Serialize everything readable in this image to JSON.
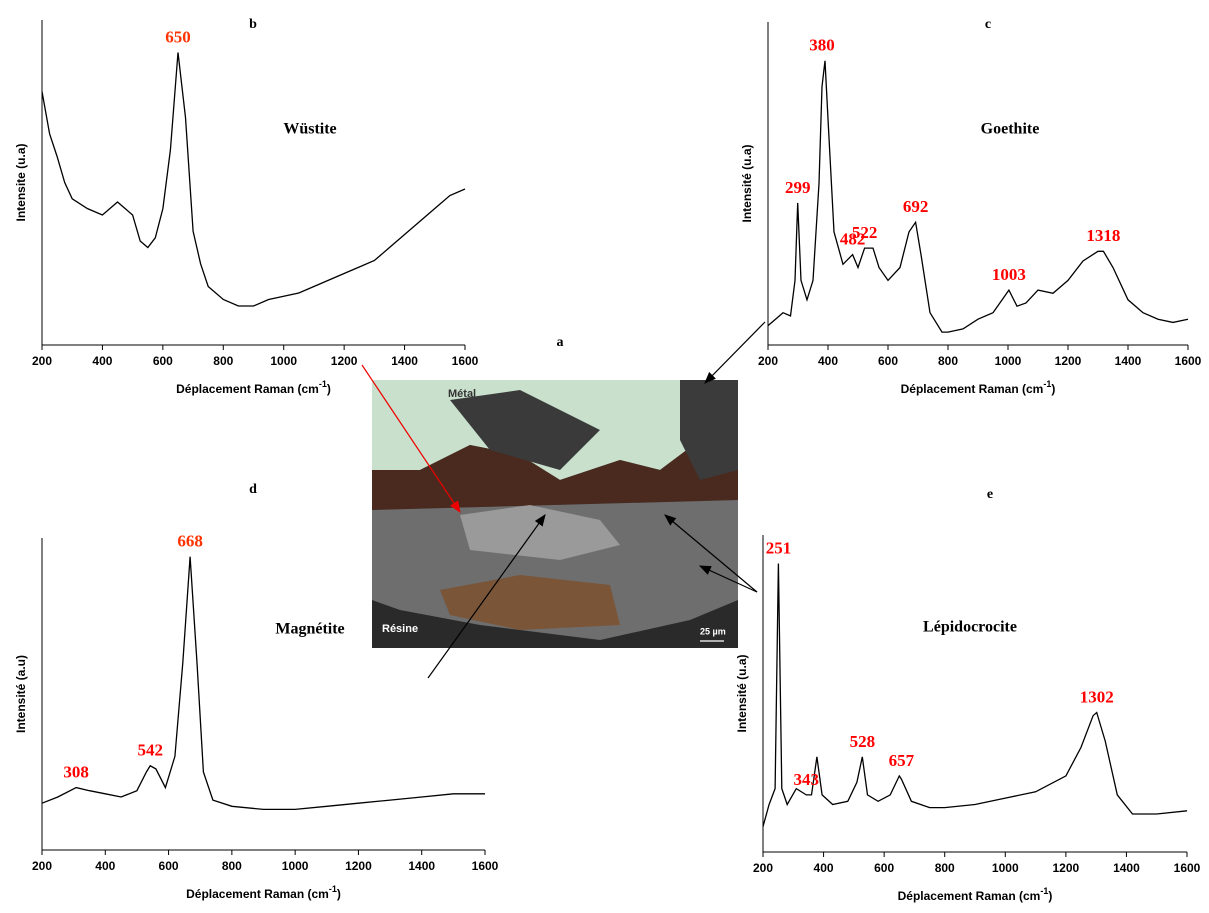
{
  "figure_label": "a",
  "micrograph": {
    "labels": [
      "Métal",
      "Résine",
      "25 µm"
    ]
  },
  "chart_data": [
    {
      "type": "line",
      "title": "b",
      "annotation": "Wüstite",
      "ylabel": "Intensite (u.a)",
      "xlabel": [
        "Déplacement Raman (cm",
        "-1",
        ")"
      ],
      "x": [
        200,
        225,
        250,
        275,
        300,
        350,
        400,
        450,
        500,
        525,
        550,
        575,
        600,
        625,
        650,
        675,
        700,
        725,
        750,
        800,
        850,
        900,
        950,
        1000,
        1050,
        1100,
        1150,
        1200,
        1250,
        1300,
        1350,
        1400,
        1450,
        1500,
        1550,
        1600
      ],
      "values": [
        78,
        65,
        58,
        50,
        45,
        42,
        40,
        44,
        40,
        32,
        30,
        33,
        42,
        60,
        90,
        70,
        35,
        25,
        18,
        14,
        12,
        12,
        14,
        15,
        16,
        18,
        20,
        22,
        24,
        26,
        30,
        34,
        38,
        42,
        46,
        48
      ],
      "color": "#000000",
      "xlim": [
        200,
        1600
      ],
      "ylim": [
        0,
        100
      ],
      "xticks": [
        200,
        400,
        600,
        800,
        1000,
        1200,
        1400,
        1600
      ],
      "peaks": [
        650
      ],
      "peak_colors": [
        "#ff3300"
      ]
    },
    {
      "type": "line",
      "title": "c",
      "annotation": "Goethite",
      "ylabel": "Intensité (u.a)",
      "xlabel": [
        "Déplacement Raman (cm",
        "-1",
        ")"
      ],
      "x": [
        200,
        225,
        250,
        275,
        290,
        299,
        310,
        330,
        350,
        370,
        380,
        390,
        400,
        420,
        450,
        482,
        500,
        522,
        550,
        570,
        600,
        640,
        670,
        692,
        710,
        740,
        780,
        800,
        850,
        900,
        950,
        1003,
        1030,
        1060,
        1100,
        1150,
        1200,
        1250,
        1300,
        1318,
        1350,
        1400,
        1450,
        1500,
        1550,
        1600
      ],
      "values": [
        6,
        8,
        10,
        9,
        20,
        44,
        20,
        14,
        20,
        50,
        80,
        88,
        70,
        35,
        25,
        28,
        24,
        30,
        30,
        24,
        20,
        24,
        35,
        38,
        28,
        10,
        4,
        4,
        5,
        8,
        10,
        17,
        12,
        13,
        17,
        16,
        20,
        26,
        29,
        29,
        24,
        14,
        10,
        8,
        7,
        8
      ],
      "color": "#000000",
      "xlim": [
        200,
        1600
      ],
      "ylim": [
        0,
        100
      ],
      "xticks": [
        200,
        400,
        600,
        800,
        1000,
        1200,
        1400,
        1600
      ],
      "peaks": [
        299,
        380,
        482,
        522,
        692,
        1003,
        1318
      ],
      "peak_colors": [
        "#ff0000",
        "#ff0000",
        "#ff0000",
        "#ff0000",
        "#ff0000",
        "#ff0000",
        "#ff0000"
      ]
    },
    {
      "type": "line",
      "title": "d",
      "annotation": "Magnétite",
      "ylabel": "Intensité (a.u)",
      "xlabel": [
        "Déplacement Raman (cm",
        "-1",
        ")"
      ],
      "x": [
        200,
        250,
        308,
        350,
        400,
        450,
        500,
        530,
        542,
        560,
        590,
        620,
        645,
        668,
        690,
        710,
        740,
        800,
        900,
        1000,
        1100,
        1200,
        1300,
        1400,
        1500,
        1600
      ],
      "values": [
        15,
        17,
        20,
        19,
        18,
        17,
        19,
        25,
        27,
        26,
        20,
        30,
        60,
        94,
        60,
        25,
        16,
        14,
        13,
        13,
        14,
        15,
        16,
        17,
        18,
        18
      ],
      "color": "#000000",
      "xlim": [
        200,
        1600
      ],
      "ylim": [
        0,
        100
      ],
      "xticks": [
        200,
        400,
        600,
        800,
        1000,
        1200,
        1400,
        1600
      ],
      "peaks": [
        308,
        542,
        668
      ],
      "peak_colors": [
        "#ff0000",
        "#ff0000",
        "#ff3300"
      ]
    },
    {
      "type": "line",
      "title": "e",
      "annotation": "Lépidocrocite",
      "ylabel": "Intensité (u.a)",
      "xlabel": [
        "Déplacement Raman (cm",
        "-1",
        ")"
      ],
      "x": [
        200,
        220,
        240,
        251,
        262,
        280,
        310,
        343,
        360,
        378,
        395,
        430,
        480,
        510,
        528,
        545,
        580,
        620,
        650,
        657,
        690,
        750,
        800,
        900,
        1000,
        1100,
        1200,
        1250,
        1290,
        1302,
        1330,
        1370,
        1420,
        1500,
        1600
      ],
      "values": [
        8,
        15,
        20,
        91,
        20,
        15,
        20,
        18,
        18,
        30,
        18,
        15,
        16,
        22,
        30,
        18,
        16,
        18,
        24,
        23,
        16,
        14,
        14,
        15,
        17,
        19,
        24,
        33,
        43,
        44,
        35,
        18,
        12,
        12,
        13
      ],
      "color": "#000000",
      "xlim": [
        200,
        1600
      ],
      "ylim": [
        0,
        100
      ],
      "xticks": [
        200,
        400,
        600,
        800,
        1000,
        1200,
        1400,
        1600
      ],
      "peaks": [
        251,
        343,
        528,
        657,
        1302
      ],
      "peak_colors": [
        "#ff0000",
        "#ff0000",
        "#ff0000",
        "#ff0000",
        "#ff0000"
      ]
    }
  ]
}
